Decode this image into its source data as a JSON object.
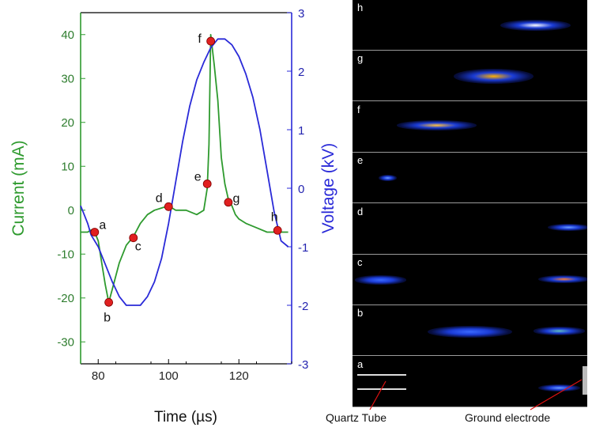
{
  "chart_data": {
    "type": "line",
    "xlabel": "Time (µs)",
    "y_left_label": "Current (mA)",
    "y_right_label": "Voltage (kV)",
    "xlim": [
      75,
      135
    ],
    "ylim_left": [
      -35,
      45
    ],
    "ylim_right": [
      -3,
      3
    ],
    "x_ticks": [
      "80",
      "100",
      "120"
    ],
    "x_tick_values": [
      80,
      100,
      120
    ],
    "y_left_ticks": [
      "40",
      "30",
      "20",
      "10",
      "0",
      "-10",
      "-20",
      "-30"
    ],
    "y_left_tick_values": [
      40,
      30,
      20,
      10,
      0,
      -10,
      -20,
      -30
    ],
    "y_right_ticks": [
      "3",
      "2",
      "1",
      "0",
      "-1",
      "-2",
      "-3"
    ],
    "y_right_tick_values": [
      3,
      2,
      1,
      0,
      -1,
      -2,
      -3
    ],
    "series": [
      {
        "axis": "left",
        "color": "#2e9a2e",
        "x": [
          75,
          77,
          78,
          79,
          80,
          81,
          82,
          83,
          84,
          86,
          88,
          90,
          92,
          94,
          96,
          98,
          100,
          102,
          105,
          108,
          110,
          111,
          111.5,
          112,
          113,
          114,
          115,
          116,
          117,
          118,
          119,
          120,
          122,
          125,
          128,
          131,
          134
        ],
        "y": [
          -5,
          -5,
          -4.5,
          -5,
          -7,
          -12,
          -17,
          -21,
          -18,
          -12,
          -8,
          -6,
          -3,
          -1,
          0,
          0.5,
          1,
          0,
          0,
          -1,
          0,
          5,
          15,
          40,
          33,
          25,
          12,
          6,
          2.5,
          1,
          -1,
          -2,
          -3,
          -4,
          -5,
          -5,
          -5
        ]
      },
      {
        "axis": "right",
        "color": "#2a2ad8",
        "x": [
          75,
          76,
          77,
          78,
          80,
          82,
          84,
          86,
          88,
          90,
          92,
          94,
          96,
          98,
          100,
          102,
          104,
          106,
          108,
          110,
          112,
          114,
          116,
          118,
          120,
          122,
          124,
          126,
          128,
          130,
          132,
          134
        ],
        "y": [
          -0.3,
          -0.45,
          -0.6,
          -0.8,
          -1.0,
          -1.3,
          -1.6,
          -1.85,
          -2.0,
          -2.0,
          -2.0,
          -1.85,
          -1.6,
          -1.2,
          -0.6,
          0.1,
          0.8,
          1.4,
          1.85,
          2.15,
          2.4,
          2.55,
          2.55,
          2.45,
          2.25,
          1.95,
          1.55,
          1.0,
          0.3,
          -0.4,
          -0.9,
          -1.0
        ]
      }
    ],
    "annotations": [
      {
        "label": "a",
        "x": 79,
        "y": -5
      },
      {
        "label": "b",
        "x": 83,
        "y": -21
      },
      {
        "label": "c",
        "x": 90,
        "y": -6.3
      },
      {
        "label": "d",
        "x": 100,
        "y": 0.8
      },
      {
        "label": "e",
        "x": 111,
        "y": 6
      },
      {
        "label": "f",
        "x": 112,
        "y": 38.5
      },
      {
        "label": "g",
        "x": 117,
        "y": 1.8
      },
      {
        "label": "h",
        "x": 131,
        "y": -4.6
      }
    ]
  },
  "frames": [
    {
      "label": "h",
      "glows": [
        {
          "cx": 78,
          "cy": 50,
          "w": 30,
          "h": 22,
          "color": "#1b3cd6",
          "core": "#ffffff"
        }
      ]
    },
    {
      "label": "g",
      "glows": [
        {
          "cx": 60,
          "cy": 50,
          "w": 34,
          "h": 30,
          "color": "#1b3cd6",
          "core": "#ffb000"
        }
      ]
    },
    {
      "label": "f",
      "glows": [
        {
          "cx": 36,
          "cy": 47,
          "w": 34,
          "h": 20,
          "color": "#1b3cd6",
          "core": "#ffc040"
        }
      ]
    },
    {
      "label": "e",
      "glows": [
        {
          "cx": 15,
          "cy": 50,
          "w": 8,
          "h": 12,
          "color": "#1b3cd6",
          "core": "#6ea0ff"
        }
      ]
    },
    {
      "label": "d",
      "glows": [
        {
          "cx": 92,
          "cy": 47,
          "w": 18,
          "h": 14,
          "color": "#1b3cd6",
          "core": "#6ea0ff"
        }
      ]
    },
    {
      "label": "c",
      "glows": [
        {
          "cx": 12,
          "cy": 50,
          "w": 22,
          "h": 18,
          "color": "#1b3cd6",
          "core": "#3a6aff"
        },
        {
          "cx": 90,
          "cy": 48,
          "w": 22,
          "h": 16,
          "color": "#1b3cd6",
          "core": "#ff8030"
        }
      ]
    },
    {
      "label": "b",
      "glows": [
        {
          "cx": 50,
          "cy": 52,
          "w": 36,
          "h": 24,
          "color": "#1b3cd6",
          "core": "#3a6aff"
        },
        {
          "cx": 88,
          "cy": 50,
          "w": 22,
          "h": 16,
          "color": "#1b3cd6",
          "core": "#60c0c0"
        }
      ]
    },
    {
      "label": "a",
      "glows": [
        {
          "cx": 88,
          "cy": 62,
          "w": 18,
          "h": 14,
          "color": "#1b3cd6",
          "core": "#6ea0ff"
        }
      ]
    }
  ],
  "captions": {
    "quartz": "Quartz Tube",
    "ground": "Ground electrode"
  }
}
